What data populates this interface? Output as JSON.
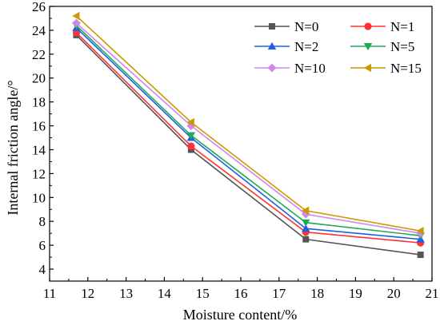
{
  "chart_data": {
    "type": "line",
    "xlabel": "Moisture content/%",
    "ylabel": "Internal friction angle/°",
    "xlim": [
      11,
      21
    ],
    "ylim": [
      3,
      26
    ],
    "xticks": [
      "11",
      "12",
      "13",
      "14",
      "15",
      "16",
      "17",
      "18",
      "19",
      "20",
      "21"
    ],
    "yticks": [
      "4",
      "6",
      "8",
      "10",
      "12",
      "14",
      "16",
      "18",
      "20",
      "22",
      "24",
      "26"
    ],
    "x": [
      11.7,
      14.7,
      17.7,
      20.7
    ],
    "legend_position": "top-right",
    "series": [
      {
        "name": "N=0",
        "values": [
          23.6,
          14.0,
          6.5,
          5.2
        ],
        "color": "#555555",
        "marker": "square"
      },
      {
        "name": "N=1",
        "values": [
          23.8,
          14.3,
          7.1,
          6.2
        ],
        "color": "#ff3333",
        "marker": "circle"
      },
      {
        "name": "N=2",
        "values": [
          24.2,
          15.0,
          7.4,
          6.5
        ],
        "color": "#1f5fe6",
        "marker": "triangle-up"
      },
      {
        "name": "N=5",
        "values": [
          24.4,
          15.2,
          7.9,
          6.8
        ],
        "color": "#1faa55",
        "marker": "triangle-down"
      },
      {
        "name": "N=10",
        "values": [
          24.6,
          16.0,
          8.6,
          7.0
        ],
        "color": "#cc88ee",
        "marker": "diamond"
      },
      {
        "name": "N=15",
        "values": [
          25.2,
          16.3,
          8.9,
          7.2
        ],
        "color": "#cc9900",
        "marker": "triangle-left"
      }
    ]
  }
}
